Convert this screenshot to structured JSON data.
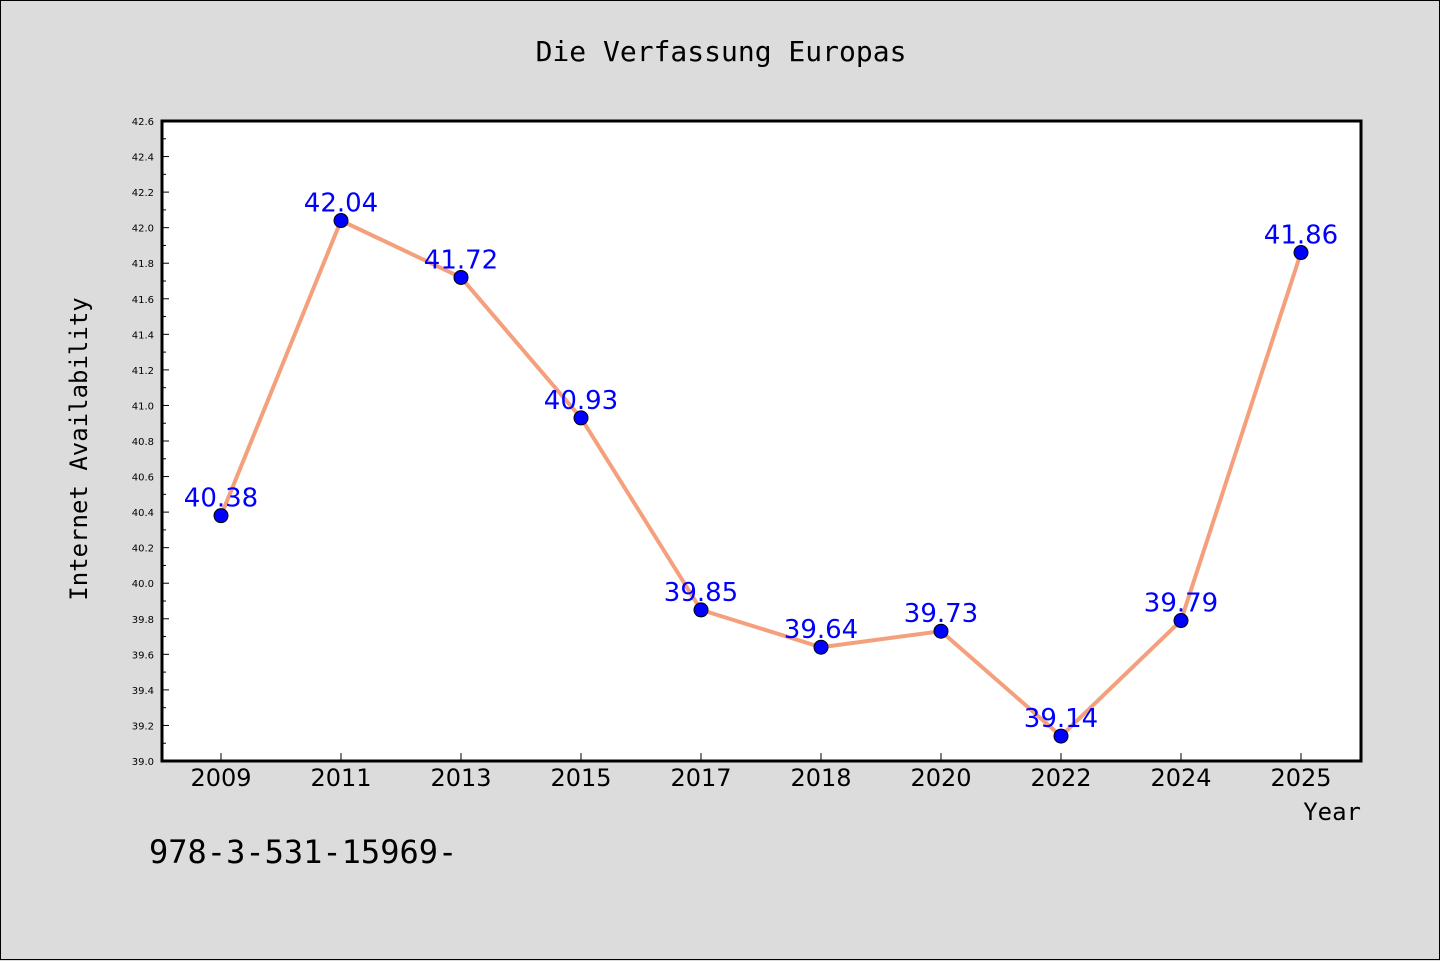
{
  "page": {
    "title": "Die Verfassung Europas",
    "footer": "978-3-531-15969-"
  },
  "colors": {
    "background": "#dcdcdc",
    "plot_background": "#ffffff",
    "line": "#f4a07c",
    "marker": "#0000ff",
    "data_label": "#0000ff"
  },
  "chart_data": {
    "type": "line",
    "title": "Die Verfassung Europas",
    "xlabel": "Year",
    "ylabel": "Internet Availability",
    "categories": [
      "2009",
      "2011",
      "2013",
      "2015",
      "2017",
      "2018",
      "2020",
      "2022",
      "2024",
      "2025"
    ],
    "series": [
      {
        "values": [
          40.38,
          42.04,
          41.72,
          40.93,
          39.85,
          39.64,
          39.73,
          39.14,
          39.79,
          41.86
        ]
      }
    ],
    "data_labels": [
      "40.38",
      "42.04",
      "41.72",
      "40.93",
      "39.85",
      "39.64",
      "39.73",
      "39.14",
      "39.79",
      "41.86"
    ],
    "ylim": [
      39.0,
      42.6
    ],
    "yticks": [
      "39.0",
      "39.2",
      "39.4",
      "39.6",
      "39.8",
      "40.0",
      "40.2",
      "40.4",
      "40.6",
      "40.8",
      "41.0",
      "41.2",
      "41.4",
      "41.6",
      "41.8",
      "42.0",
      "42.2",
      "42.4",
      "42.6"
    ],
    "grid": false,
    "legend": "none",
    "marker": "circle"
  }
}
